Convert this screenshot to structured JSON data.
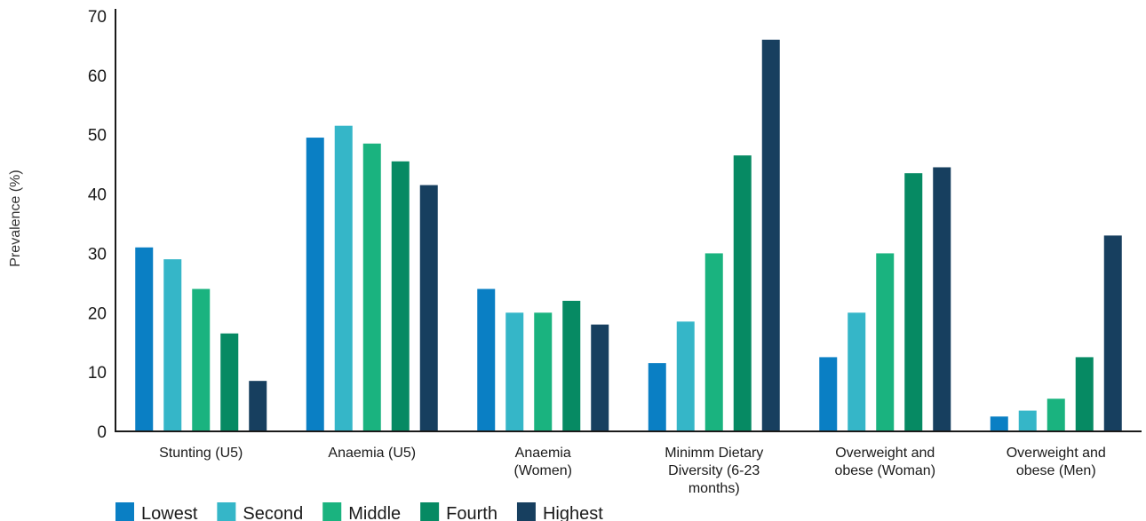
{
  "chart_data": {
    "type": "bar",
    "title": "",
    "xlabel": "",
    "ylabel": "Prevalence (%)",
    "ylim": [
      0,
      70
    ],
    "yticks": [
      0,
      10,
      20,
      30,
      40,
      50,
      60,
      70
    ],
    "grid": false,
    "legend_position": "bottom-left",
    "categories": [
      [
        "Stunting (U5)"
      ],
      [
        "Anaemia (U5)"
      ],
      [
        "Anaemia",
        "(Women)"
      ],
      [
        "Minimm Dietary",
        "Diversity (6-23",
        "months)"
      ],
      [
        "Overweight and",
        "obese (Woman)"
      ],
      [
        "Overweight and",
        "obese (Men)"
      ]
    ],
    "series": [
      {
        "name": "Lowest",
        "color": "#0a7fc4",
        "values": [
          31,
          49.5,
          24,
          11.5,
          12.5,
          2.5
        ]
      },
      {
        "name": "Second",
        "color": "#35b6c8",
        "values": [
          29,
          51.5,
          20,
          18.5,
          20,
          3.5
        ]
      },
      {
        "name": "Middle",
        "color": "#1ab37f",
        "values": [
          24,
          48.5,
          20,
          30,
          30,
          5.5
        ]
      },
      {
        "name": "Fourth",
        "color": "#068a63",
        "values": [
          16.5,
          45.5,
          22,
          46.5,
          43.5,
          12.5
        ]
      },
      {
        "name": "Highest",
        "color": "#173f5f",
        "values": [
          8.5,
          41.5,
          18,
          66,
          44.5,
          33
        ]
      }
    ]
  }
}
